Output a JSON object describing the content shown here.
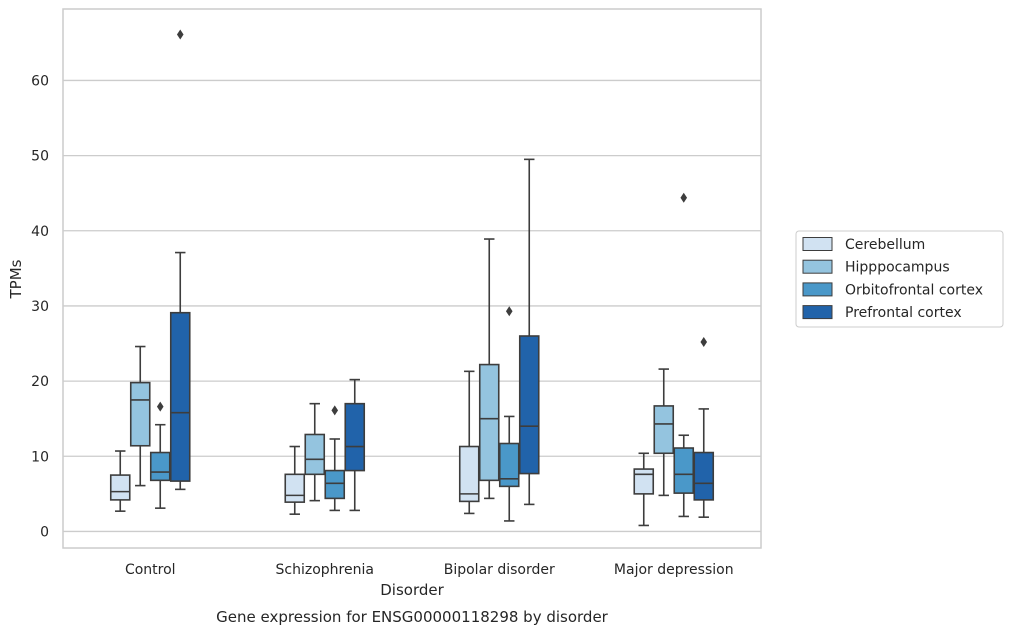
{
  "chart_data": {
    "type": "boxplot",
    "xlabel": "Disorder",
    "ylabel": "TPMs",
    "caption": "Gene expression for ENSG00000118298 by disorder",
    "ylim": [
      -2.2,
      69.5
    ],
    "yticks": [
      0,
      10,
      20,
      30,
      40,
      50,
      60
    ],
    "grid": "horizontal",
    "legend_position": "right",
    "categories": [
      "Control",
      "Schizophrenia",
      "Bipolar disorder",
      "Major depression"
    ],
    "series": [
      {
        "name": "Cerebellum",
        "color": "#d1e2f2",
        "boxes": [
          {
            "whislo": 2.7,
            "q1": 4.2,
            "med": 5.3,
            "q3": 7.5,
            "whishi": 10.7,
            "fliers": []
          },
          {
            "whislo": 2.3,
            "q1": 3.9,
            "med": 4.8,
            "q3": 7.6,
            "whishi": 11.3,
            "fliers": []
          },
          {
            "whislo": 2.4,
            "q1": 4.0,
            "med": 5.0,
            "q3": 11.3,
            "whishi": 21.3,
            "fliers": []
          },
          {
            "whislo": 0.8,
            "q1": 5.0,
            "med": 7.6,
            "q3": 8.3,
            "whishi": 10.4,
            "fliers": []
          }
        ]
      },
      {
        "name": "Hipppocampus",
        "color": "#94c4df",
        "boxes": [
          {
            "whislo": 6.1,
            "q1": 11.4,
            "med": 17.5,
            "q3": 19.8,
            "whishi": 24.6,
            "fliers": []
          },
          {
            "whislo": 4.1,
            "q1": 7.6,
            "med": 9.6,
            "q3": 12.9,
            "whishi": 17.0,
            "fliers": []
          },
          {
            "whislo": 4.4,
            "q1": 6.8,
            "med": 15.0,
            "q3": 22.2,
            "whishi": 38.9,
            "fliers": []
          },
          {
            "whislo": 4.8,
            "q1": 10.4,
            "med": 14.3,
            "q3": 16.7,
            "whishi": 21.6,
            "fliers": []
          }
        ]
      },
      {
        "name": "Orbitofrontal cortex",
        "color": "#4a98c9",
        "boxes": [
          {
            "whislo": 3.1,
            "q1": 6.8,
            "med": 7.9,
            "q3": 10.5,
            "whishi": 14.2,
            "fliers": [
              16.6
            ]
          },
          {
            "whislo": 2.8,
            "q1": 4.4,
            "med": 6.4,
            "q3": 8.1,
            "whishi": 12.3,
            "fliers": [
              16.1
            ]
          },
          {
            "whislo": 1.4,
            "q1": 6.0,
            "med": 7.0,
            "q3": 11.7,
            "whishi": 15.3,
            "fliers": [
              29.3
            ]
          },
          {
            "whislo": 2.0,
            "q1": 5.1,
            "med": 7.6,
            "q3": 11.1,
            "whishi": 12.8,
            "fliers": [
              44.4
            ]
          }
        ]
      },
      {
        "name": "Prefrontal cortex",
        "color": "#2163aa",
        "boxes": [
          {
            "whislo": 5.6,
            "q1": 6.7,
            "med": 15.8,
            "q3": 29.1,
            "whishi": 37.1,
            "fliers": [
              66.1
            ]
          },
          {
            "whislo": 2.8,
            "q1": 8.1,
            "med": 11.3,
            "q3": 17.0,
            "whishi": 20.2,
            "fliers": []
          },
          {
            "whislo": 3.6,
            "q1": 7.7,
            "med": 14.0,
            "q3": 26.0,
            "whishi": 49.5,
            "fliers": []
          },
          {
            "whislo": 1.9,
            "q1": 4.2,
            "med": 6.4,
            "q3": 10.5,
            "whishi": 16.3,
            "fliers": [
              25.2
            ]
          }
        ]
      }
    ],
    "colors": {
      "grid": "#cccccc",
      "frame": "#cccccc",
      "line": "#3d3d3d",
      "text": "#262626"
    }
  }
}
